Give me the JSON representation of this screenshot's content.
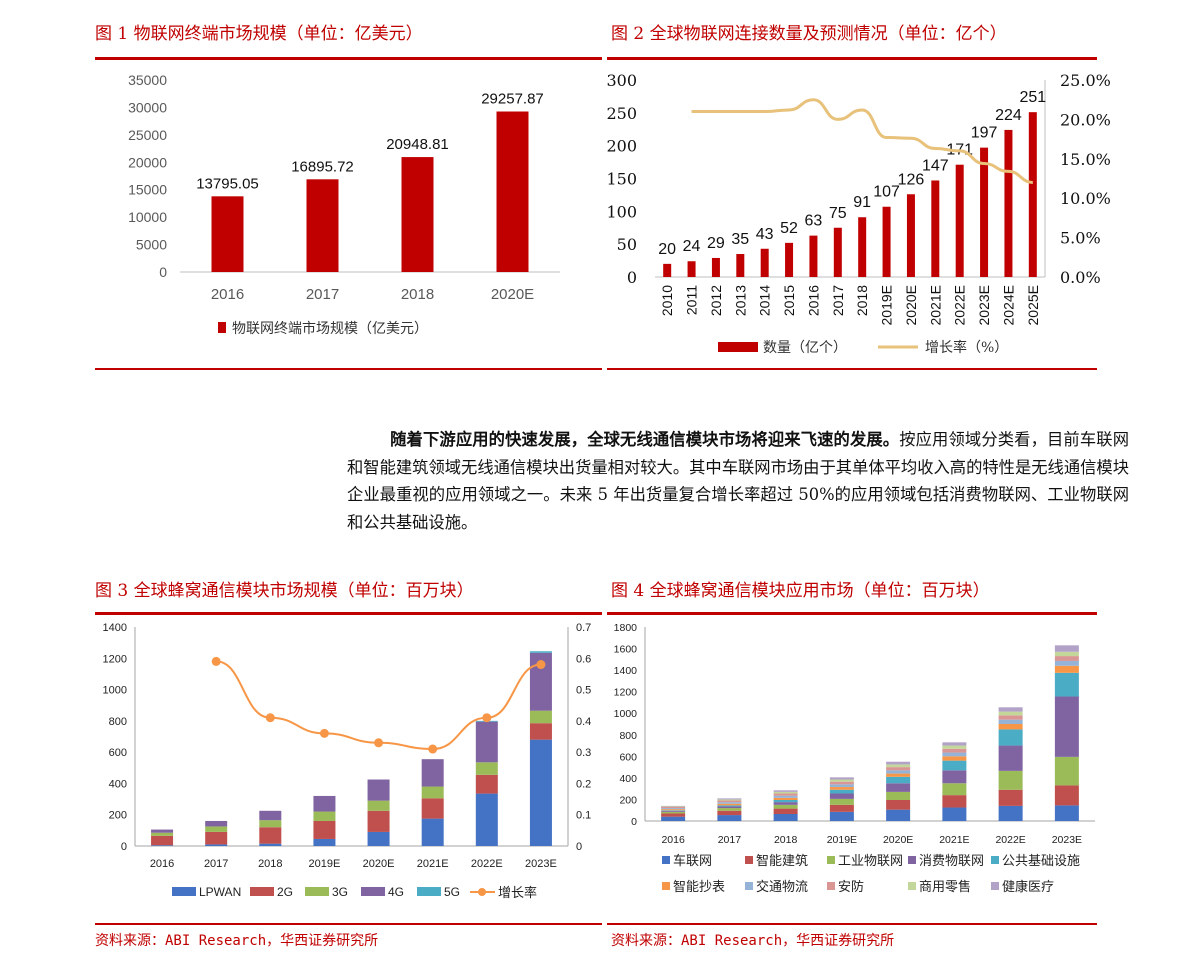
{
  "fig1": {
    "title": "图 1 物联网终端市场规模（单位：亿美元）",
    "legend": "物联网终端市场规模（亿美元）",
    "chart_data": {
      "type": "bar",
      "categories": [
        "2016",
        "2017",
        "2018",
        "2020E"
      ],
      "values": [
        13795.05,
        16895.72,
        20948.81,
        29257.87
      ],
      "value_labels": [
        "13795.05",
        "16895.72",
        "20948.81",
        "29257.87"
      ],
      "yticks": [
        "0",
        "5000",
        "10000",
        "15000",
        "20000",
        "25000",
        "30000",
        "35000"
      ],
      "ylim": [
        0,
        35000
      ],
      "series_name": "物联网终端市场规模（亿美元）",
      "color": "#c00000"
    }
  },
  "fig2": {
    "title": "图 2 全球物联网连接数量及预测情况（单位：亿个）",
    "legend_bar": "数量（亿个）",
    "legend_line": "增长率（%）",
    "chart_data": {
      "type": "bar+line",
      "categories": [
        "2010",
        "2011",
        "2012",
        "2013",
        "2014",
        "2015",
        "2016",
        "2017",
        "2018",
        "2019E",
        "2020E",
        "2021E",
        "2022E",
        "2023E",
        "2024E",
        "2025E"
      ],
      "bar_values": [
        20,
        24,
        29,
        35,
        43,
        52,
        63,
        75,
        91,
        107,
        126,
        147,
        171,
        197,
        224,
        251
      ],
      "bar_labels": [
        "20",
        "24",
        "29",
        "35",
        "43",
        "52",
        "63",
        "75",
        "91",
        "107",
        "126",
        "147",
        "171",
        "197",
        "224",
        "251"
      ],
      "growth_pct": [
        null,
        21.0,
        21.0,
        21.0,
        21.0,
        21.2,
        22.5,
        20.0,
        21.2,
        17.7,
        17.6,
        16.3,
        16.0,
        14.4,
        13.4,
        12.0
      ],
      "y_left_ticks": [
        "0",
        "50",
        "100",
        "150",
        "200",
        "250",
        "300"
      ],
      "y_left_lim": [
        0,
        300
      ],
      "y_right_ticks": [
        "0.0%",
        "5.0%",
        "10.0%",
        "15.0%",
        "20.0%",
        "25.0%"
      ],
      "y_right_lim": [
        0,
        25
      ],
      "bar_color": "#c00000",
      "line_color": "#e8c17a"
    }
  },
  "paragraph": {
    "bold": "随着下游应用的快速发展，全球无线通信模块市场将迎来飞速的发展。",
    "rest": "按应用领域分类看，目前车联网和智能建筑领域无线通信模块出货量相对较大。其中车联网市场由于其单体平均收入高的特性是无线通信模块企业最重视的应用领域之一。未来 5 年出货量复合增长率超过 50%的应用领域包括消费物联网、工业物联网和公共基础设施。"
  },
  "fig3": {
    "title": "图 3 全球蜂窝通信模块市场规模（单位：百万块）",
    "source": "资料来源：ABI Research，华西证券研究所",
    "chart_data": {
      "type": "stacked-bar+line",
      "categories": [
        "2016",
        "2017",
        "2018",
        "2019E",
        "2020E",
        "2021E",
        "2022E",
        "2023E"
      ],
      "series": [
        {
          "name": "LPWAN",
          "color": "#4472c4",
          "values": [
            5,
            10,
            15,
            45,
            90,
            175,
            335,
            680
          ]
        },
        {
          "name": "2G",
          "color": "#c0504d",
          "values": [
            60,
            80,
            105,
            115,
            135,
            130,
            120,
            105
          ]
        },
        {
          "name": "3G",
          "color": "#9bbb59",
          "values": [
            20,
            35,
            45,
            60,
            65,
            75,
            80,
            80
          ]
        },
        {
          "name": "4G",
          "color": "#8064a2",
          "values": [
            20,
            35,
            60,
            100,
            135,
            175,
            260,
            370
          ]
        },
        {
          "name": "5G",
          "color": "#4bacc6",
          "values": [
            0,
            0,
            0,
            0,
            0,
            0,
            5,
            10
          ]
        }
      ],
      "growth": {
        "name": "增长率",
        "color": "#f79646",
        "values": [
          null,
          0.59,
          0.41,
          0.36,
          0.33,
          0.31,
          0.41,
          0.58
        ]
      },
      "y_left_ticks": [
        "0",
        "200",
        "400",
        "600",
        "800",
        "1000",
        "1200",
        "1400"
      ],
      "y_left_lim": [
        0,
        1400
      ],
      "y_right_ticks": [
        "0",
        "0.1",
        "0.2",
        "0.3",
        "0.4",
        "0.5",
        "0.6",
        "0.7"
      ],
      "y_right_lim": [
        0,
        0.7
      ]
    }
  },
  "fig4": {
    "title": "图 4 全球蜂窝通信模块应用市场（单位：百万块）",
    "source": "资料来源：ABI Research，华西证券研究所",
    "chart_data": {
      "type": "stacked-bar",
      "categories": [
        "2016",
        "2017",
        "2018",
        "2019E",
        "2020E",
        "2021E",
        "2022E",
        "2023E"
      ],
      "series": [
        {
          "name": "车联网",
          "color": "#4472c4",
          "values": [
            40,
            55,
            65,
            85,
            105,
            125,
            140,
            145
          ]
        },
        {
          "name": "智能建筑",
          "color": "#c0504d",
          "values": [
            30,
            40,
            50,
            65,
            90,
            115,
            150,
            185
          ]
        },
        {
          "name": "工业物联网",
          "color": "#9bbb59",
          "values": [
            15,
            25,
            35,
            55,
            75,
            110,
            175,
            265
          ]
        },
        {
          "name": "消费物联网",
          "color": "#8064a2",
          "values": [
            10,
            15,
            25,
            50,
            80,
            120,
            235,
            560
          ]
        },
        {
          "name": "公共基础设施",
          "color": "#4bacc6",
          "values": [
            5,
            10,
            20,
            35,
            60,
            90,
            150,
            220
          ]
        },
        {
          "name": "智能抄表",
          "color": "#f79646",
          "values": [
            10,
            15,
            20,
            25,
            30,
            40,
            50,
            65
          ]
        },
        {
          "name": "交通物流",
          "color": "#95b3d7",
          "values": [
            10,
            15,
            20,
            25,
            30,
            35,
            40,
            45
          ]
        },
        {
          "name": "安防",
          "color": "#da9694",
          "values": [
            10,
            15,
            20,
            25,
            30,
            35,
            40,
            45
          ]
        },
        {
          "name": "商用零售",
          "color": "#c4d79b",
          "values": [
            5,
            10,
            15,
            20,
            25,
            30,
            35,
            40
          ]
        },
        {
          "name": "健康医疗",
          "color": "#b2a2c7",
          "values": [
            5,
            10,
            15,
            20,
            25,
            30,
            40,
            60
          ]
        }
      ],
      "yticks": [
        "0",
        "200",
        "400",
        "600",
        "800",
        "1000",
        "1200",
        "1400",
        "1600",
        "1800"
      ],
      "ylim": [
        0,
        1800
      ]
    }
  }
}
